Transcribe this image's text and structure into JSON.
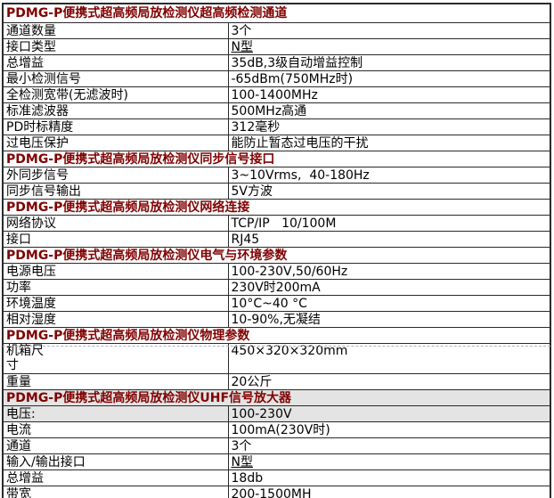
{
  "colors": {
    "header_text": "#800000",
    "body_text": "#000000",
    "border": "#2a2a2a",
    "section_highlight_bg": "#e4e4e4"
  },
  "table": {
    "sections": [
      {
        "header": "PDMG-P便携式超高频局放检测仪超高频检测通道",
        "rows": [
          {
            "label": "通道数量",
            "value": "3个"
          },
          {
            "label": "接口类型",
            "value": "N型"
          },
          {
            "label": "总增益",
            "value": "35dB,3级自动增益控制"
          },
          {
            "label": "最小检测信号",
            "value": "-65dBm(750MHz时)"
          },
          {
            "label": "全检测宽带(无滤波时)",
            "value": "100-1400MHz"
          },
          {
            "label": "标准滤波器",
            "value": "500MHz高通"
          },
          {
            "label": "PD时标精度",
            "value": "312毫秒"
          },
          {
            "label": "过电压保护",
            "value": "能防止暂态过电压的干扰"
          }
        ]
      },
      {
        "header": "PDMG-P便携式超高频局放检测仪同步信号接口",
        "rows": [
          {
            "label": "外同步信号",
            "value": "3~10Vrms,  40-180Hz"
          },
          {
            "label": "同步信号输出",
            "value": "5V方波"
          }
        ]
      },
      {
        "header": "PDMG-P便携式超高频局放检测仪网络连接",
        "rows": [
          {
            "label": "网络协议",
            "value": "TCP/IP   10/100M"
          },
          {
            "label": "接口",
            "value": "RJ45"
          }
        ]
      },
      {
        "header": "PDMG-P便携式超高频局放检测仪电气与环境参数",
        "rows": [
          {
            "label": "电源电压",
            "value": "100-230V,50/60Hz"
          },
          {
            "label": "功率",
            "value": "230V时200mA"
          },
          {
            "label": "环境温度",
            "value": "10°C~40 °C"
          },
          {
            "label": "相对湿度",
            "value": "10-90%,无凝结"
          }
        ]
      },
      {
        "header": "PDMG-P便携式超高频局放检测仪物理参数",
        "rows": [
          {
            "label": "机箱尺\n寸",
            "value": "450×320×320mm"
          },
          {
            "label": "重量",
            "value": "20公斤"
          }
        ]
      },
      {
        "header": "PDMG-P便携式超高频局放检测仪UHF信号放大器",
        "rows": [
          {
            "label": "电压:",
            "value": "100-230V"
          },
          {
            "label": "电流",
            "value": "100mA(230V时)"
          },
          {
            "label": "通道",
            "value": "3个"
          },
          {
            "label": "输入/输出接口",
            "value": "N型"
          },
          {
            "label": "总增益",
            "value": "18db"
          },
          {
            "label": "带宽",
            "value": "200-1500MH"
          }
        ]
      }
    ]
  }
}
